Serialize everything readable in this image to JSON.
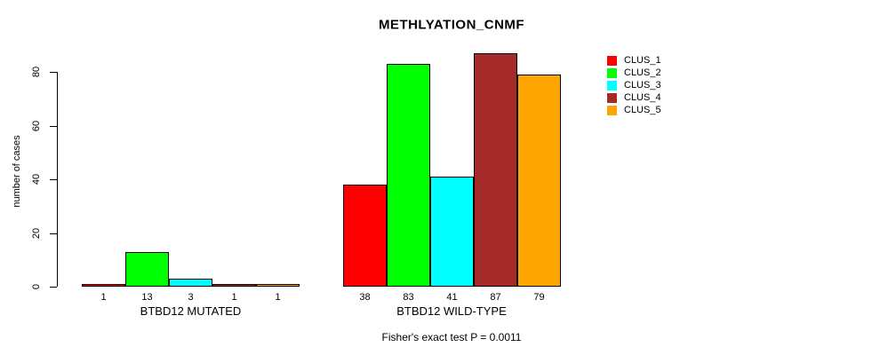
{
  "title": "METHLYATION_CNMF",
  "caption": "Fisher's exact test P = 0.0011",
  "chart_data": {
    "type": "bar",
    "title": "METHLYATION_CNMF",
    "xlabel": "",
    "ylabel": "number of cases",
    "ylim": [
      0,
      87
    ],
    "yticks": [
      0,
      20,
      40,
      60,
      80
    ],
    "grid": false,
    "legend_position": "right-of-plot-top",
    "categories": [
      "BTBD12 MUTATED",
      "BTBD12 WILD-TYPE"
    ],
    "series": [
      {
        "name": "CLUS_1",
        "color": "#FF0000",
        "values": [
          1,
          38
        ]
      },
      {
        "name": "CLUS_2",
        "color": "#00FF00",
        "values": [
          13,
          83
        ]
      },
      {
        "name": "CLUS_3",
        "color": "#00FFFF",
        "values": [
          3,
          41
        ]
      },
      {
        "name": "CLUS_4",
        "color": "#A52A2A",
        "values": [
          1,
          87
        ]
      },
      {
        "name": "CLUS_5",
        "color": "#FFA500",
        "values": [
          1,
          79
        ]
      }
    ],
    "bar_value_labels": [
      [
        "1",
        "13",
        "3",
        "1",
        "1"
      ],
      [
        "38",
        "83",
        "41",
        "87",
        "79"
      ]
    ],
    "bar_border_color": "#000000",
    "annotation": "Fisher's exact test P = 0.0011"
  }
}
